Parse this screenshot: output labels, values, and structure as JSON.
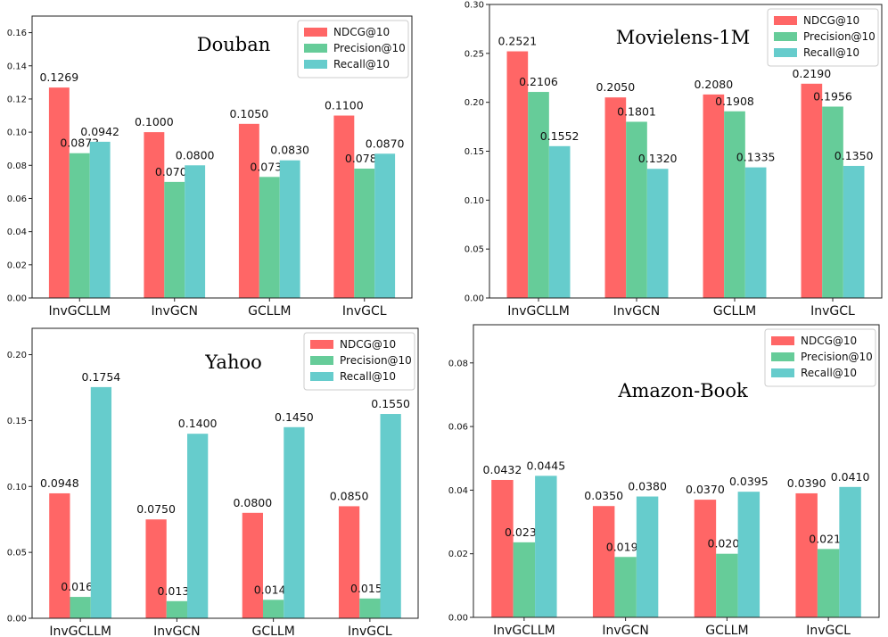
{
  "series_colors": [
    "#FF6666",
    "#66CC99",
    "#66CCCC"
  ],
  "chart_data": [
    {
      "type": "bar",
      "title": "Douban",
      "categories": [
        "InvGCLLM",
        "InvGCN",
        "GCLLM",
        "InvGCL"
      ],
      "series": [
        {
          "name": "NDCG@10",
          "values": [
            0.1269,
            0.1,
            0.105,
            0.11
          ],
          "labels": [
            "0.1269",
            "0.1000",
            "0.1050",
            "0.1100"
          ]
        },
        {
          "name": "Precision@10",
          "values": [
            0.0873,
            0.07,
            0.073,
            0.078
          ],
          "labels": [
            "0.0873",
            "0.0700",
            "0.0730",
            "0.0780"
          ]
        },
        {
          "name": "Recall@10",
          "values": [
            0.0942,
            0.08,
            0.083,
            0.087
          ],
          "labels": [
            "0.0942",
            "0.0800",
            "0.0830",
            "0.0870"
          ]
        }
      ],
      "ylim": [
        0,
        0.17
      ],
      "yticks": [
        "0.00",
        "0.02",
        "0.04",
        "0.06",
        "0.08",
        "0.10",
        "0.12",
        "0.14",
        "0.16"
      ],
      "legend": "top-right",
      "grid": false
    },
    {
      "type": "bar",
      "title": "Movielens-1M",
      "categories": [
        "InvGCLLM",
        "InvGCN",
        "GCLLM",
        "InvGCL"
      ],
      "series": [
        {
          "name": "NDCG@10",
          "values": [
            0.2521,
            0.205,
            0.208,
            0.219
          ],
          "labels": [
            "0.2521",
            "0.2050",
            "0.2080",
            "0.2190"
          ]
        },
        {
          "name": "Precision@10",
          "values": [
            0.2106,
            0.1801,
            0.1908,
            0.1956
          ],
          "labels": [
            "0.2106",
            "0.1801",
            "0.1908",
            "0.1956"
          ]
        },
        {
          "name": "Recall@10",
          "values": [
            0.1552,
            0.132,
            0.1335,
            0.135
          ],
          "labels": [
            "0.1552",
            "0.1320",
            "0.1335",
            "0.1350"
          ]
        }
      ],
      "ylim": [
        0,
        0.3
      ],
      "yticks": [
        "0.00",
        "0.05",
        "0.10",
        "0.15",
        "0.20",
        "0.25",
        "0.30"
      ],
      "legend": "top-right",
      "grid": false
    },
    {
      "type": "bar",
      "title": "Yahoo",
      "categories": [
        "InvGCLLM",
        "InvGCN",
        "GCLLM",
        "InvGCL"
      ],
      "series": [
        {
          "name": "NDCG@10",
          "values": [
            0.0948,
            0.075,
            0.08,
            0.085
          ],
          "labels": [
            "0.0948",
            "0.0750",
            "0.0800",
            "0.0850"
          ]
        },
        {
          "name": "Precision@10",
          "values": [
            0.0162,
            0.013,
            0.014,
            0.015
          ],
          "labels": [
            "0.0162",
            "0.0130",
            "0.0140",
            "0.0150"
          ]
        },
        {
          "name": "Recall@10",
          "values": [
            0.1754,
            0.14,
            0.145,
            0.155
          ],
          "labels": [
            "0.1754",
            "0.1400",
            "0.1450",
            "0.1550"
          ]
        }
      ],
      "ylim": [
        0,
        0.22
      ],
      "yticks": [
        "0.00",
        "0.05",
        "0.10",
        "0.15",
        "0.20"
      ],
      "legend": "top-right",
      "grid": false
    },
    {
      "type": "bar",
      "title": "Amazon-Book",
      "categories": [
        "InvGCLLM",
        "InvGCN",
        "GCLLM",
        "InvGCL"
      ],
      "series": [
        {
          "name": "NDCG@10",
          "values": [
            0.0432,
            0.035,
            0.037,
            0.039
          ],
          "labels": [
            "0.0432",
            "0.0350",
            "0.0370",
            "0.0390"
          ]
        },
        {
          "name": "Precision@10",
          "values": [
            0.0236,
            0.019,
            0.02,
            0.0215
          ],
          "labels": [
            "0.0236",
            "0.0190",
            "0.0200",
            "0.0215"
          ]
        },
        {
          "name": "Recall@10",
          "values": [
            0.0445,
            0.038,
            0.0395,
            0.041
          ],
          "labels": [
            "0.0445",
            "0.0380",
            "0.0395",
            "0.0410"
          ]
        }
      ],
      "ylim": [
        0,
        0.092
      ],
      "yticks": [
        "0.00",
        "0.02",
        "0.04",
        "0.06",
        "0.08"
      ],
      "legend": "top-right",
      "grid": false
    }
  ]
}
